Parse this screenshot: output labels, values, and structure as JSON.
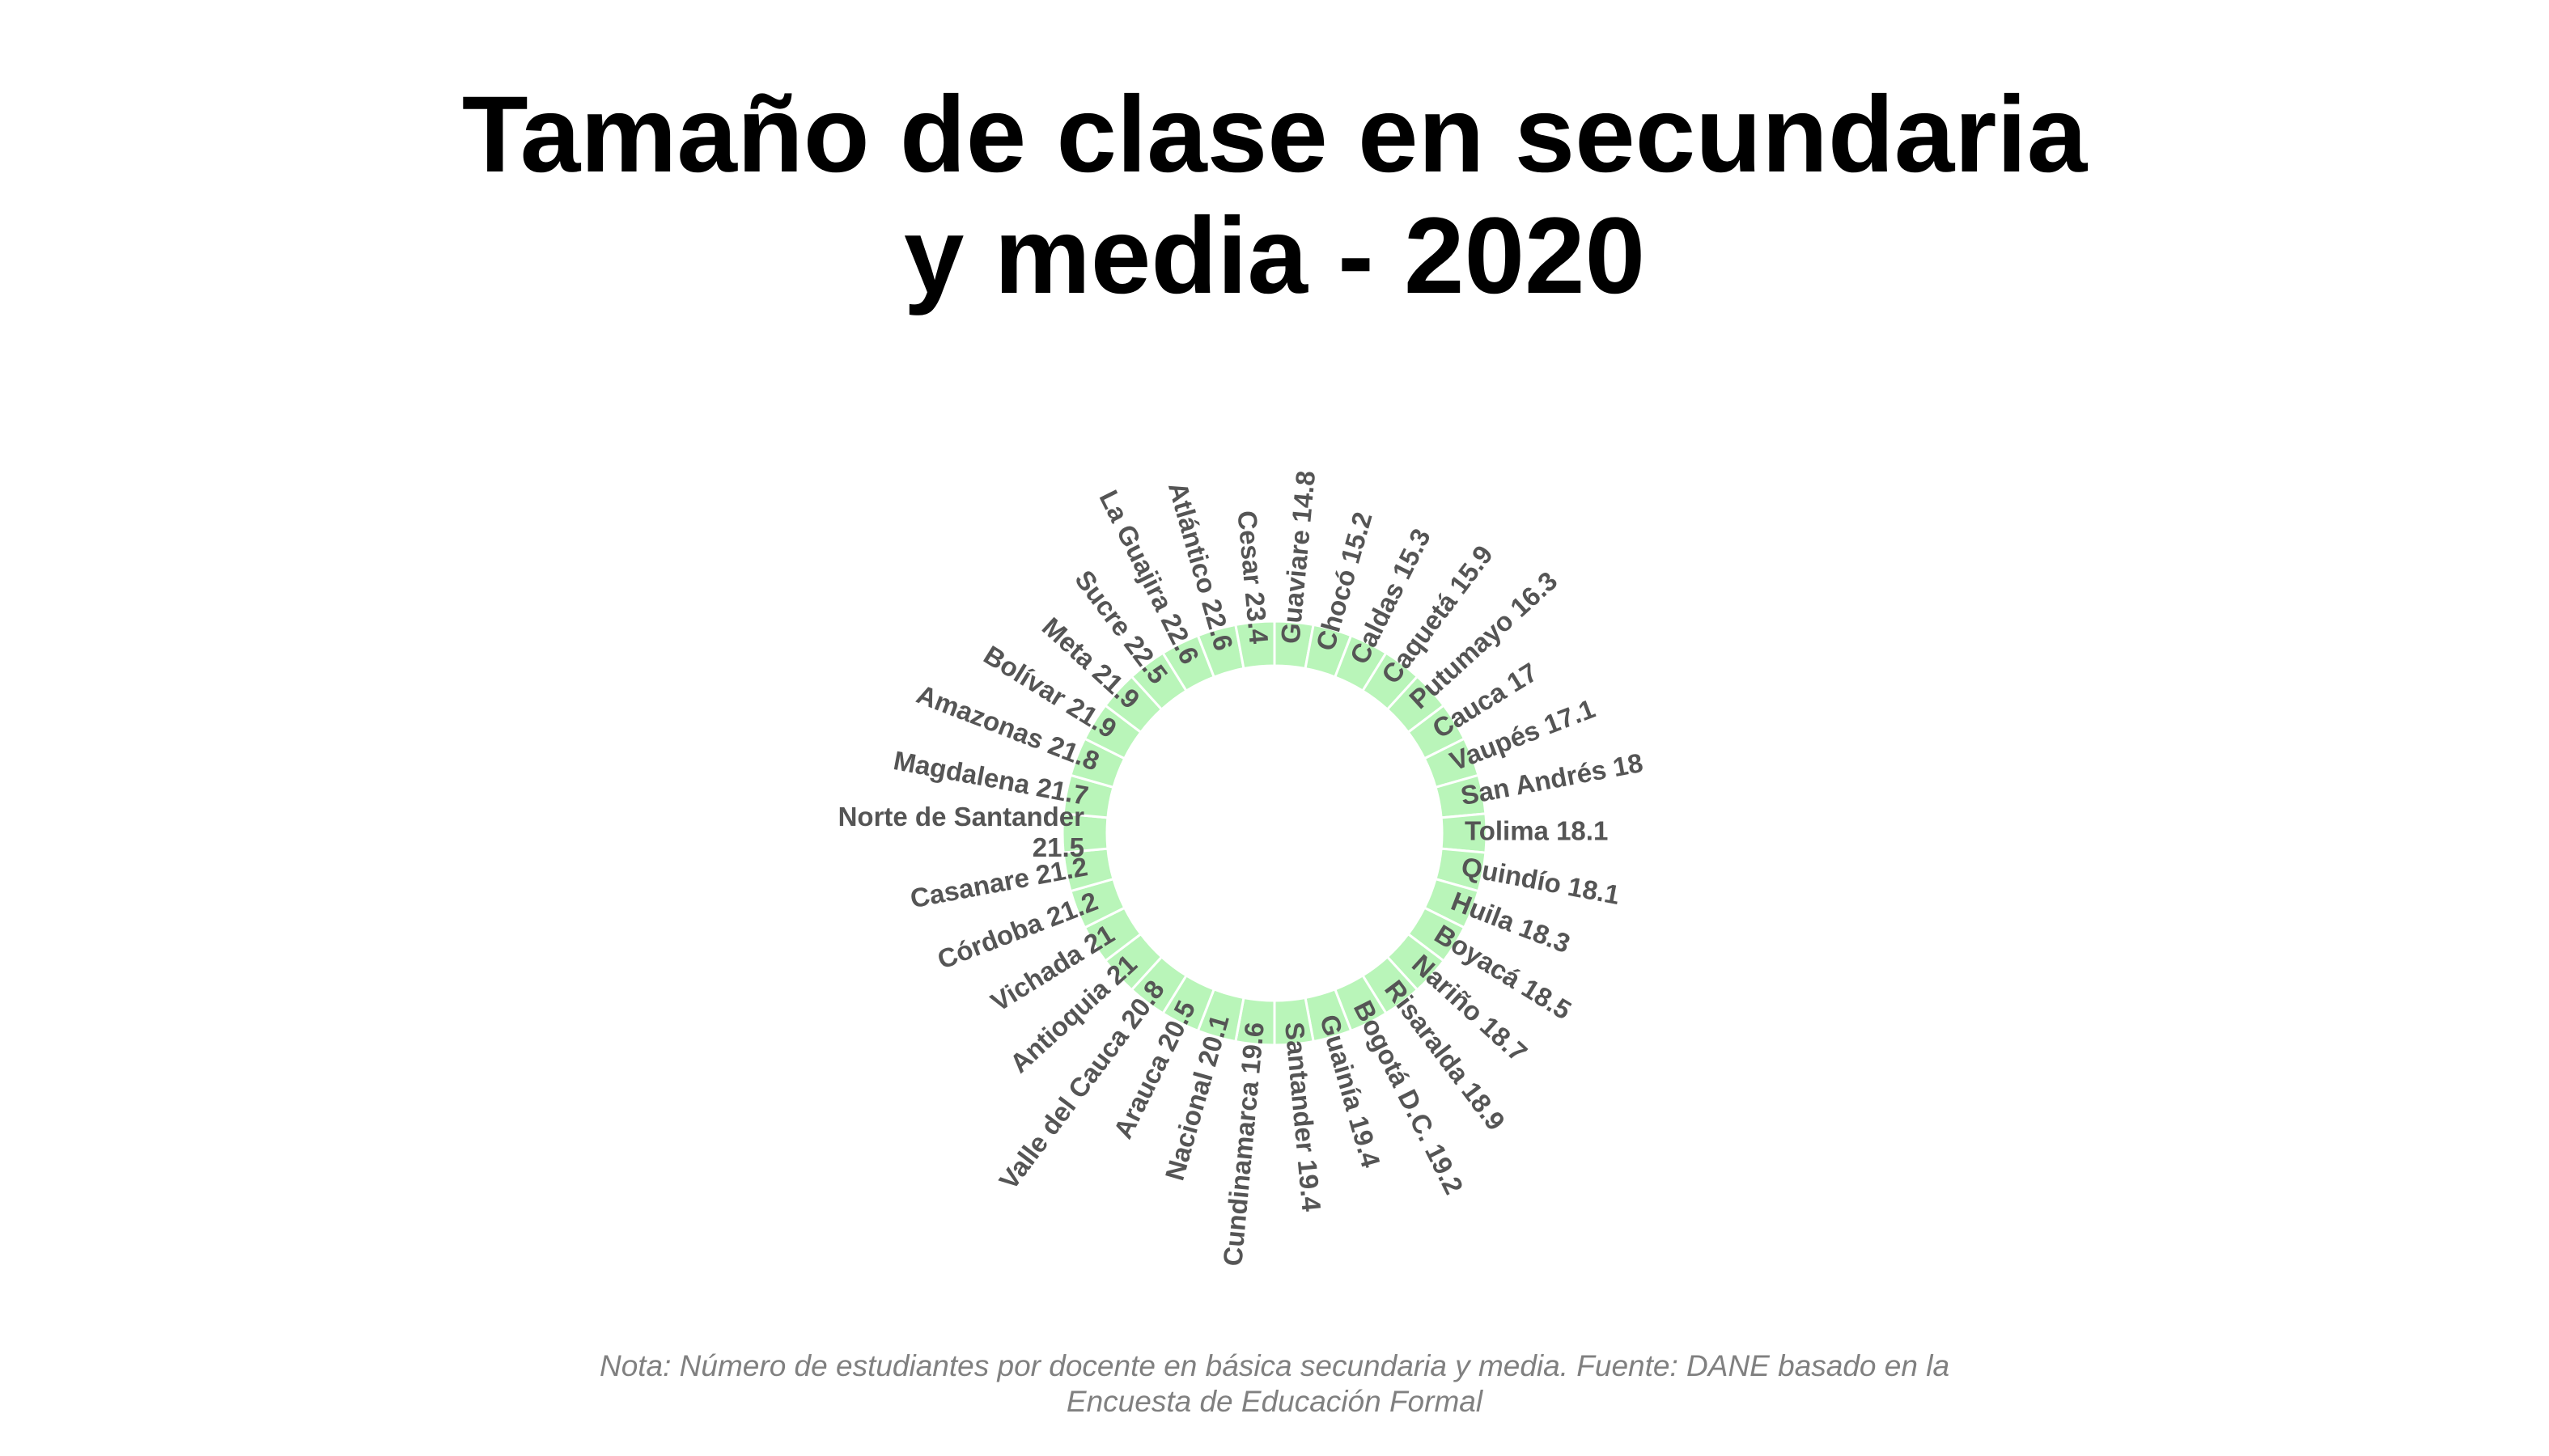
{
  "title_lines": [
    "Tamaño de clase en secundaria",
    "y media - 2020"
  ],
  "note_lines": [
    "Nota: Número de estudiantes por docente en básica secundaria y media. Fuente: DANE basado en la",
    "Encuesta de Educación Formal"
  ],
  "chart_data": {
    "type": "bar",
    "layout": "circular",
    "bar_color": "#b9f5b9",
    "separator_color": "#ffffff",
    "label_color": "#555555",
    "categories": [
      "Guaviare",
      "Chocó",
      "Caldas",
      "Caquetá",
      "Putumayo",
      "Cauca",
      "Vaupés",
      "San Andrés",
      "Tolima",
      "Quindío",
      "Huila",
      "Boyacá",
      "Nariño",
      "Risaralda",
      "Bogotá D.C.",
      "Guainía",
      "Santander",
      "Cundinamarca",
      "Nacional",
      "Arauca",
      "Valle del Cauca",
      "Antioquia",
      "Vichada",
      "Córdoba",
      "Casanare",
      "Norte de Santander",
      "Magdalena",
      "Amazonas",
      "Bolívar",
      "Meta",
      "Sucre",
      "La Guajira",
      "Atlántico",
      "Cesar"
    ],
    "values": [
      14.8,
      15.2,
      15.3,
      15.9,
      16.3,
      17,
      17.1,
      18,
      18.1,
      18.1,
      18.3,
      18.5,
      18.7,
      18.9,
      19.2,
      19.4,
      19.4,
      19.6,
      20.1,
      20.5,
      20.8,
      21,
      21,
      21.2,
      21.2,
      21.5,
      21.7,
      21.8,
      21.9,
      21.9,
      22.5,
      22.6,
      22.6,
      23.4
    ],
    "labels": [
      "Guaviare 14.8",
      "Chocó 15.2",
      "Caldas 15.3",
      "Caquetá 15.9",
      "Putumayo 16.3",
      "Cauca 17",
      "Vaupés 17.1",
      "San Andrés 18",
      "Tolima 18.1",
      "Quindío 18.1",
      "Huila 18.3",
      "Boyacá 18.5",
      "Nariño 18.7",
      "Risaralda 18.9",
      "Bogotá D.C. 19.2",
      "Guainía 19.4",
      "Santander 19.4",
      "Cundinamarca 19.6",
      "Nacional 20.1",
      "Arauca 20.5",
      "Valle del Cauca 20.8",
      "Antioquia 21",
      "Vichada 21",
      "Córdoba 21.2",
      "Casanare 21.2",
      [
        "Norte de Santander",
        "21.5"
      ],
      "Magdalena 21.7",
      "Amazonas 21.8",
      "Bolívar 21.9",
      "Meta 21.9",
      "Sucre 22.5",
      "La Guajira 22.6",
      "Atlántico 22.6",
      "Cesar 23.4"
    ],
    "order": "ascending clockwise from top"
  }
}
